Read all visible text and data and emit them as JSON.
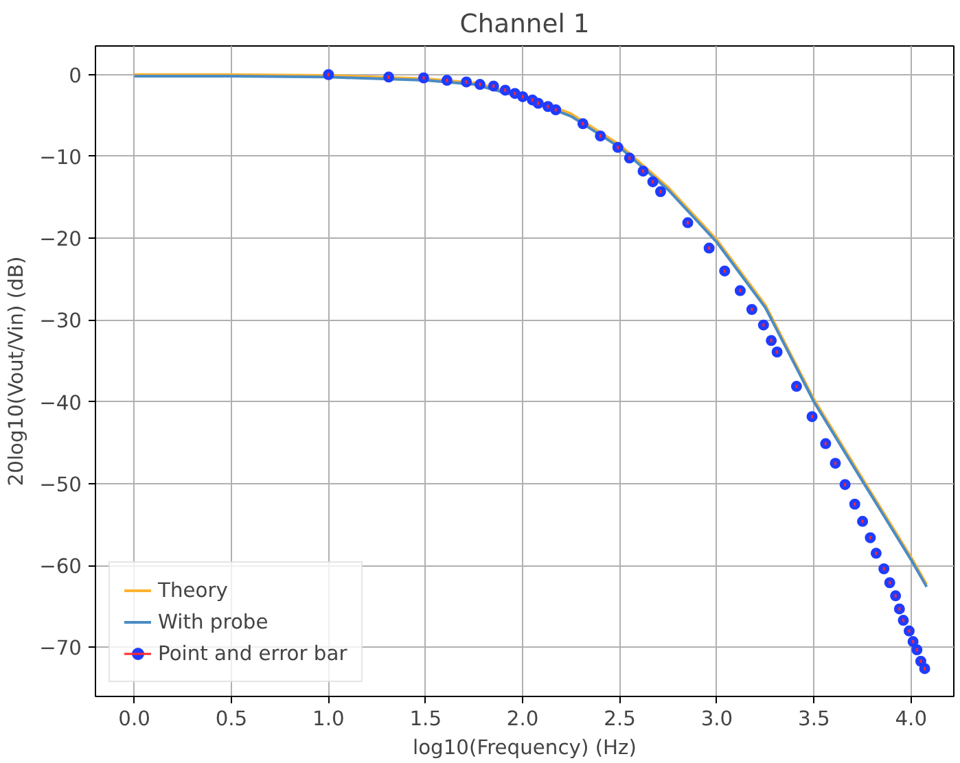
{
  "chart_data": {
    "type": "line",
    "title": "Channel 1",
    "xlabel": "log10(Frequency) (Hz)",
    "ylabel": "20log10(Vout/Vin) (dB)",
    "xlim": [
      -0.2,
      4.22
    ],
    "ylim": [
      -76,
      3.5
    ],
    "xticks": [
      {
        "value": 0,
        "label": "0.0"
      },
      {
        "value": 0.5,
        "label": "0.5"
      },
      {
        "value": 1,
        "label": "1.0"
      },
      {
        "value": 1.5,
        "label": "1.5"
      },
      {
        "value": 2,
        "label": "2.0"
      },
      {
        "value": 2.5,
        "label": "2.5"
      },
      {
        "value": 3,
        "label": "3.0"
      },
      {
        "value": 3.5,
        "label": "3.5"
      },
      {
        "value": 4,
        "label": "4.0"
      }
    ],
    "yticks": [
      0,
      {
        "value": -10,
        "label": "−10"
      },
      {
        "value": -20,
        "label": "−20"
      },
      {
        "value": -30,
        "label": "−30"
      },
      {
        "value": -40,
        "label": "−40"
      },
      {
        "value": -50,
        "label": "−50"
      },
      {
        "value": -60,
        "label": "−60"
      },
      {
        "value": -70,
        "label": "−70"
      }
    ],
    "grid": true,
    "legend": "bottom left",
    "series": [
      {
        "name": "Theory",
        "color": "#ffb330",
        "x": [
          0,
          0.5,
          1,
          1.5,
          1.75,
          2,
          2.25,
          2.5,
          2.75,
          3,
          3.25,
          3.5,
          3.75,
          4,
          4.08
        ],
        "values": [
          0,
          0,
          -0.1,
          -0.5,
          -1.0,
          -2.5,
          -4.8,
          -8.6,
          -13.8,
          -20.2,
          -28.2,
          -39.7,
          -49.4,
          -59.0,
          -62.3
        ]
      },
      {
        "name": "With probe",
        "color": "#4a8cc4",
        "x": [
          0,
          0.5,
          1,
          1.5,
          1.75,
          2,
          2.25,
          2.5,
          2.75,
          3,
          3.25,
          3.5,
          3.75,
          4,
          4.08
        ],
        "values": [
          -0.2,
          -0.2,
          -0.3,
          -0.7,
          -1.2,
          -2.8,
          -5.1,
          -8.9,
          -14.1,
          -20.5,
          -28.5,
          -40.0,
          -49.7,
          -59.3,
          -62.6
        ]
      },
      {
        "name": "Point and error bar",
        "type": "scatter",
        "marker": "circle",
        "color": "#1f3cff",
        "x": [
          1.0,
          1.31,
          1.49,
          1.61,
          1.71,
          1.78,
          1.85,
          1.91,
          1.96,
          2.0,
          2.05,
          2.08,
          2.13,
          2.17,
          2.31,
          2.4,
          2.49,
          2.55,
          2.62,
          2.67,
          2.71,
          2.85,
          2.96,
          3.04,
          3.12,
          3.18,
          3.24,
          3.28,
          3.31,
          3.41,
          3.49,
          3.56,
          3.61,
          3.66,
          3.71,
          3.75,
          3.79,
          3.82,
          3.86,
          3.89,
          3.92,
          3.94,
          3.96,
          3.99,
          4.01,
          4.03,
          4.05,
          4.07
        ],
        "values": [
          0,
          -0.3,
          -0.4,
          -0.7,
          -0.9,
          -1.2,
          -1.4,
          -1.9,
          -2.3,
          -2.7,
          -3.1,
          -3.5,
          -3.9,
          -4.3,
          -6.0,
          -7.5,
          -8.9,
          -10.2,
          -11.8,
          -13.1,
          -14.3,
          -18.1,
          -21.2,
          -24.0,
          -26.4,
          -28.7,
          -30.6,
          -32.5,
          -33.9,
          -38.1,
          -41.8,
          -45.1,
          -47.5,
          -50.1,
          -52.5,
          -54.6,
          -56.6,
          -58.5,
          -60.4,
          -62.1,
          -63.7,
          -65.3,
          -66.7,
          -68.0,
          -69.3,
          -70.3,
          -71.7,
          -72.6
        ],
        "errors": [
          0.2,
          0.2,
          0.2,
          0.2,
          0.2,
          0.2,
          0.2,
          0.2,
          0.2,
          0.2,
          0.2,
          0.2,
          0.2,
          0.2,
          0.2,
          0.2,
          0.2,
          0.2,
          0.2,
          0.2,
          0.2,
          0.2,
          0.2,
          0.2,
          0.2,
          0.2,
          0.2,
          0.2,
          0.2,
          0.2,
          0.2,
          0.2,
          0.2,
          0.2,
          0.2,
          0.2,
          0.2,
          0.2,
          0.2,
          0.2,
          0.2,
          0.2,
          0.2,
          0.2,
          0.2,
          0.2,
          0.2,
          0.2
        ]
      }
    ]
  }
}
